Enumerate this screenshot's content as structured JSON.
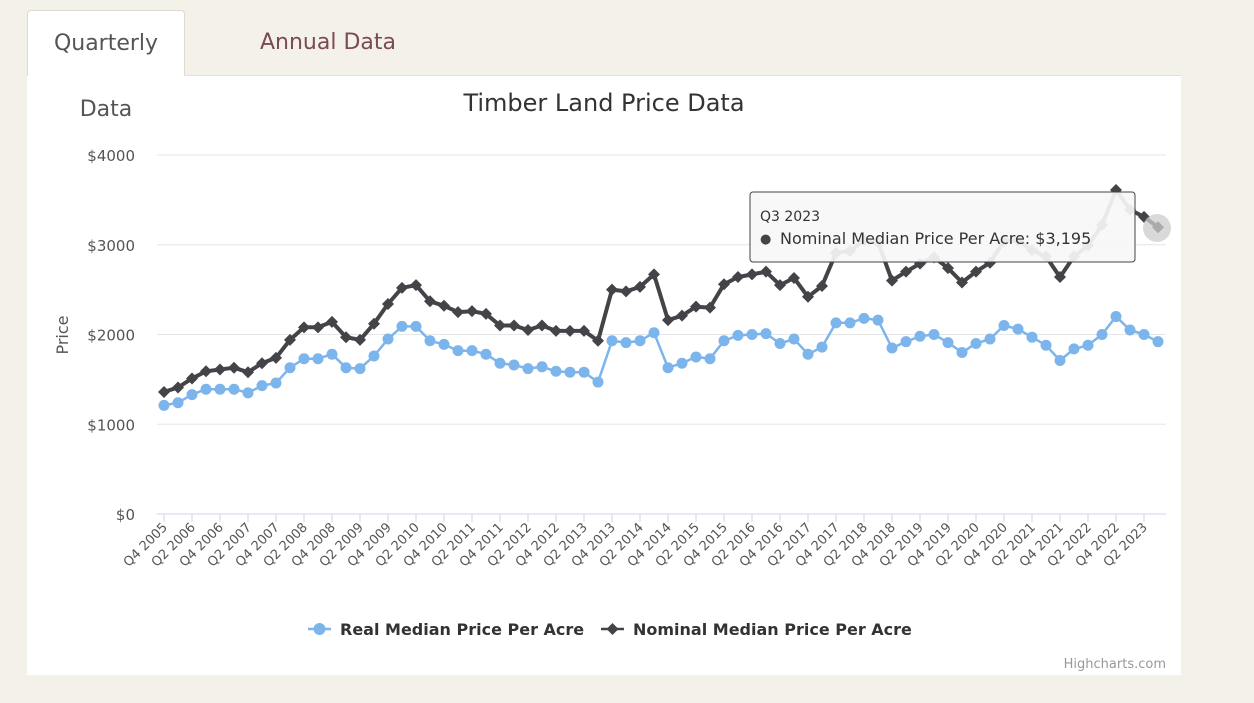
{
  "tabs": [
    {
      "label": "Quarterly Data"
    },
    {
      "label": "Annual Data"
    }
  ],
  "credit": "Highcharts.com",
  "colors": {
    "real": "#7cb5ec",
    "nominal": "#434348",
    "tab_active_text": "#555555",
    "tab_inactive_text": "#7a4a55",
    "background": "#f4f1e9"
  },
  "tooltip": {
    "header": "Q3 2023",
    "bullet": "●",
    "text": "Nominal Median Price Per Acre: $3,195"
  },
  "chart_data": {
    "type": "line",
    "title": "Timber Land Price Data",
    "xlabel": "",
    "ylabel": "Price",
    "ylim": [
      0,
      4000
    ],
    "yticks": [
      "$0",
      "$1000",
      "$2000",
      "$3000",
      "$4000"
    ],
    "ytick_values": [
      0,
      1000,
      2000,
      3000,
      4000
    ],
    "grid": true,
    "legend_position": "bottom-center",
    "x_tick_labels": [
      "Q4 2005",
      "Q2 2006",
      "Q4 2006",
      "Q2 2007",
      "Q4 2007",
      "Q2 2008",
      "Q4 2008",
      "Q2 2009",
      "Q4 2009",
      "Q2 2010",
      "Q4 2010",
      "Q2 2011",
      "Q4 2011",
      "Q2 2012",
      "Q4 2012",
      "Q2 2013",
      "Q4 2013",
      "Q2 2014",
      "Q4 2014",
      "Q2 2015",
      "Q4 2015",
      "Q2 2016",
      "Q4 2016",
      "Q2 2017",
      "Q4 2017",
      "Q2 2018",
      "Q4 2018",
      "Q2 2019",
      "Q4 2019",
      "Q2 2020",
      "Q4 2020",
      "Q2 2021",
      "Q4 2021",
      "Q2 2022",
      "Q4 2022",
      "Q2 2023"
    ],
    "series": [
      {
        "name": "Real Median Price Per Acre",
        "values": [
          1210,
          1240,
          1330,
          1390,
          1390,
          1390,
          1350,
          1430,
          1460,
          1630,
          1730,
          1730,
          1780,
          1630,
          1620,
          1760,
          1950,
          2090,
          2090,
          1930,
          1890,
          1820,
          1820,
          1780,
          1680,
          1660,
          1620,
          1640,
          1590,
          1580,
          1580,
          1470,
          1930,
          1910,
          1930,
          2020,
          1630,
          1680,
          1750,
          1730,
          1930,
          1990,
          2000,
          2010,
          1900,
          1950,
          1780,
          1860,
          2130,
          2130,
          2180,
          2160,
          1850,
          1920,
          1980,
          2000,
          1910,
          1800,
          1900,
          1950,
          2100,
          2060,
          1970,
          1880,
          1710,
          1840,
          1880,
          2000,
          2200,
          2050,
          2000,
          1920
        ]
      },
      {
        "name": "Nominal Median Price Per Acre",
        "values": [
          1360,
          1410,
          1510,
          1590,
          1610,
          1630,
          1580,
          1680,
          1740,
          1940,
          2080,
          2080,
          2140,
          1970,
          1940,
          2120,
          2340,
          2520,
          2550,
          2370,
          2320,
          2250,
          2260,
          2230,
          2100,
          2100,
          2050,
          2100,
          2040,
          2040,
          2040,
          1930,
          2500,
          2480,
          2530,
          2670,
          2160,
          2210,
          2310,
          2300,
          2560,
          2640,
          2670,
          2700,
          2550,
          2630,
          2420,
          2540,
          2910,
          2930,
          3050,
          3030,
          2600,
          2700,
          2790,
          2860,
          2740,
          2580,
          2700,
          2800,
          3040,
          3050,
          2940,
          2870,
          2640,
          2870,
          2990,
          3220,
          3610,
          3390,
          3310,
          3195
        ]
      }
    ]
  }
}
